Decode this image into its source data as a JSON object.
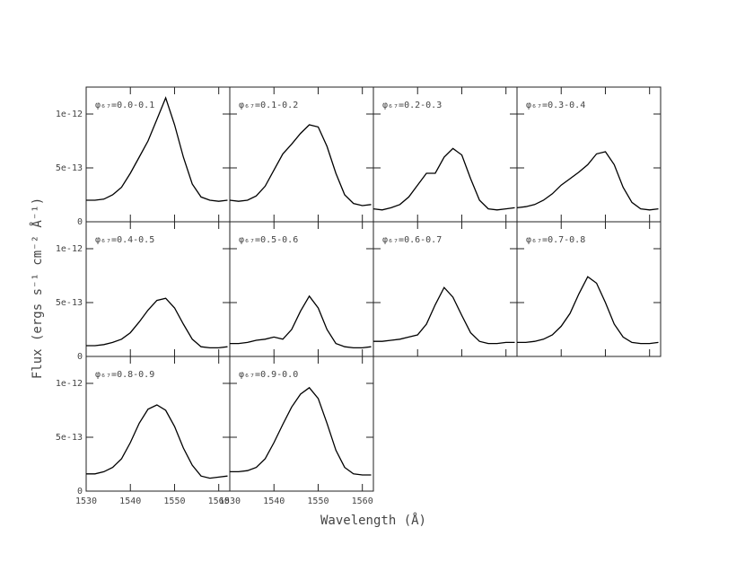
{
  "xlabel": "Wavelength (Å)",
  "ylabel": "Flux (ergs s⁻¹ cm⁻² Å⁻¹)",
  "chart_data": [
    {
      "type": "line",
      "title": "φ₆₇=0.0-0.1",
      "color": "#000000",
      "xlim": [
        1530,
        1562.5
      ],
      "ylim": [
        0,
        1.25e-12
      ],
      "xticks": [
        1530,
        1540,
        1550,
        1560
      ],
      "yticks": [
        0,
        5e-13,
        1e-12
      ],
      "x": [
        1530,
        1532,
        1534,
        1536,
        1538,
        1540,
        1542,
        1544,
        1546,
        1548,
        1550,
        1552,
        1554,
        1556,
        1558,
        1560,
        1562
      ],
      "values": [
        2e-13,
        2e-13,
        2.1e-13,
        2.5e-13,
        3.2e-13,
        4.5e-13,
        6e-13,
        7.5e-13,
        9.5e-13,
        1.15e-12,
        9e-13,
        6e-13,
        3.5e-13,
        2.3e-13,
        2e-13,
        1.9e-13,
        2e-13
      ]
    },
    {
      "type": "line",
      "title": "φ₆₇=0.1-0.2",
      "color": "#000000",
      "xlim": [
        1530,
        1562.5
      ],
      "ylim": [
        0,
        1.25e-12
      ],
      "xticks": [
        1530,
        1540,
        1550,
        1560
      ],
      "yticks": [
        0,
        5e-13,
        1e-12
      ],
      "x": [
        1530,
        1532,
        1534,
        1536,
        1538,
        1540,
        1542,
        1544,
        1546,
        1548,
        1550,
        1552,
        1554,
        1556,
        1558,
        1560,
        1562
      ],
      "values": [
        2e-13,
        1.9e-13,
        2e-13,
        2.4e-13,
        3.3e-13,
        4.8e-13,
        6.3e-13,
        7.2e-13,
        8.2e-13,
        9e-13,
        8.8e-13,
        7e-13,
        4.5e-13,
        2.5e-13,
        1.7e-13,
        1.5e-13,
        1.6e-13
      ]
    },
    {
      "type": "line",
      "title": "φ₆₇=0.2-0.3",
      "color": "#000000",
      "xlim": [
        1530,
        1562.5
      ],
      "ylim": [
        0,
        1.25e-12
      ],
      "xticks": [
        1530,
        1540,
        1550,
        1560
      ],
      "yticks": [
        0,
        5e-13,
        1e-12
      ],
      "x": [
        1530,
        1532,
        1534,
        1536,
        1538,
        1540,
        1542,
        1544,
        1546,
        1548,
        1550,
        1552,
        1554,
        1556,
        1558,
        1560,
        1562
      ],
      "values": [
        1.2e-13,
        1.1e-13,
        1.3e-13,
        1.6e-13,
        2.3e-13,
        3.4e-13,
        4.5e-13,
        4.5e-13,
        6e-13,
        6.8e-13,
        6.2e-13,
        4e-13,
        2e-13,
        1.2e-13,
        1.1e-13,
        1.2e-13,
        1.3e-13
      ]
    },
    {
      "type": "line",
      "title": "φ₆₇=0.3-0.4",
      "color": "#000000",
      "xlim": [
        1530,
        1562.5
      ],
      "ylim": [
        0,
        1.25e-12
      ],
      "xticks": [
        1530,
        1540,
        1550,
        1560
      ],
      "yticks": [
        0,
        5e-13,
        1e-12
      ],
      "x": [
        1530,
        1532,
        1534,
        1536,
        1538,
        1540,
        1542,
        1544,
        1546,
        1548,
        1550,
        1552,
        1554,
        1556,
        1558,
        1560,
        1562
      ],
      "values": [
        1.3e-13,
        1.4e-13,
        1.6e-13,
        2e-13,
        2.6e-13,
        3.4e-13,
        4e-13,
        4.6e-13,
        5.3e-13,
        6.3e-13,
        6.5e-13,
        5.3e-13,
        3.2e-13,
        1.8e-13,
        1.2e-13,
        1.1e-13,
        1.2e-13
      ]
    },
    {
      "type": "line",
      "title": "φ₆₇=0.4-0.5",
      "color": "#000000",
      "xlim": [
        1530,
        1562.5
      ],
      "ylim": [
        0,
        1.25e-12
      ],
      "xticks": [
        1530,
        1540,
        1550,
        1560
      ],
      "yticks": [
        0,
        5e-13,
        1e-12
      ],
      "x": [
        1530,
        1532,
        1534,
        1536,
        1538,
        1540,
        1542,
        1544,
        1546,
        1548,
        1550,
        1552,
        1554,
        1556,
        1558,
        1560,
        1562
      ],
      "values": [
        1e-13,
        1e-13,
        1.1e-13,
        1.3e-13,
        1.6e-13,
        2.2e-13,
        3.2e-13,
        4.3e-13,
        5.2e-13,
        5.4e-13,
        4.5e-13,
        3e-13,
        1.6e-13,
        9e-14,
        8e-14,
        8e-14,
        9e-14
      ]
    },
    {
      "type": "line",
      "title": "φ₆₇=0.5-0.6",
      "color": "#000000",
      "xlim": [
        1530,
        1562.5
      ],
      "ylim": [
        0,
        1.25e-12
      ],
      "xticks": [
        1530,
        1540,
        1550,
        1560
      ],
      "yticks": [
        0,
        5e-13,
        1e-12
      ],
      "x": [
        1530,
        1532,
        1534,
        1536,
        1538,
        1540,
        1542,
        1544,
        1546,
        1548,
        1550,
        1552,
        1554,
        1556,
        1558,
        1560,
        1562
      ],
      "values": [
        1.2e-13,
        1.2e-13,
        1.3e-13,
        1.5e-13,
        1.6e-13,
        1.8e-13,
        1.6e-13,
        2.5e-13,
        4.2e-13,
        5.6e-13,
        4.5e-13,
        2.5e-13,
        1.2e-13,
        9e-14,
        8e-14,
        8e-14,
        9e-14
      ]
    },
    {
      "type": "line",
      "title": "φ₆₇=0.6-0.7",
      "color": "#000000",
      "xlim": [
        1530,
        1562.5
      ],
      "ylim": [
        0,
        1.25e-12
      ],
      "xticks": [
        1530,
        1540,
        1550,
        1560
      ],
      "yticks": [
        0,
        5e-13,
        1e-12
      ],
      "x": [
        1530,
        1532,
        1534,
        1536,
        1538,
        1540,
        1542,
        1544,
        1546,
        1548,
        1550,
        1552,
        1554,
        1556,
        1558,
        1560,
        1562
      ],
      "values": [
        1.4e-13,
        1.4e-13,
        1.5e-13,
        1.6e-13,
        1.8e-13,
        2e-13,
        3e-13,
        4.8e-13,
        6.4e-13,
        5.5e-13,
        3.8e-13,
        2.2e-13,
        1.4e-13,
        1.2e-13,
        1.2e-13,
        1.3e-13,
        1.3e-13
      ]
    },
    {
      "type": "line",
      "title": "φ₆₇=0.7-0.8",
      "color": "#000000",
      "xlim": [
        1530,
        1562.5
      ],
      "ylim": [
        0,
        1.25e-12
      ],
      "xticks": [
        1530,
        1540,
        1550,
        1560
      ],
      "yticks": [
        0,
        5e-13,
        1e-12
      ],
      "x": [
        1530,
        1532,
        1534,
        1536,
        1538,
        1540,
        1542,
        1544,
        1546,
        1548,
        1550,
        1552,
        1554,
        1556,
        1558,
        1560,
        1562
      ],
      "values": [
        1.3e-13,
        1.3e-13,
        1.4e-13,
        1.6e-13,
        2e-13,
        2.8e-13,
        4e-13,
        5.8e-13,
        7.4e-13,
        6.8e-13,
        5e-13,
        3e-13,
        1.8e-13,
        1.3e-13,
        1.2e-13,
        1.2e-13,
        1.3e-13
      ]
    },
    {
      "type": "line",
      "title": "φ₆₇=0.8-0.9",
      "color": "#000000",
      "xlim": [
        1530,
        1562.5
      ],
      "ylim": [
        0,
        1.25e-12
      ],
      "xticks": [
        1530,
        1540,
        1550,
        1560
      ],
      "yticks": [
        0,
        5e-13,
        1e-12
      ],
      "x": [
        1530,
        1532,
        1534,
        1536,
        1538,
        1540,
        1542,
        1544,
        1546,
        1548,
        1550,
        1552,
        1554,
        1556,
        1558,
        1560,
        1562
      ],
      "values": [
        1.6e-13,
        1.6e-13,
        1.8e-13,
        2.2e-13,
        3e-13,
        4.5e-13,
        6.3e-13,
        7.6e-13,
        8e-13,
        7.5e-13,
        6e-13,
        4e-13,
        2.4e-13,
        1.4e-13,
        1.2e-13,
        1.3e-13,
        1.4e-13
      ]
    },
    {
      "type": "line",
      "title": "φ₆₇=0.9-0.0",
      "color": "#000000",
      "xlim": [
        1530,
        1562.5
      ],
      "ylim": [
        0,
        1.25e-12
      ],
      "xticks": [
        1530,
        1540,
        1550,
        1560
      ],
      "yticks": [
        0,
        5e-13,
        1e-12
      ],
      "x": [
        1530,
        1532,
        1534,
        1536,
        1538,
        1540,
        1542,
        1544,
        1546,
        1548,
        1550,
        1552,
        1554,
        1556,
        1558,
        1560,
        1562
      ],
      "values": [
        1.8e-13,
        1.8e-13,
        1.9e-13,
        2.2e-13,
        3e-13,
        4.5e-13,
        6.2e-13,
        7.8e-13,
        9e-13,
        9.6e-13,
        8.6e-13,
        6.3e-13,
        3.8e-13,
        2.2e-13,
        1.6e-13,
        1.5e-13,
        1.5e-13
      ]
    }
  ]
}
